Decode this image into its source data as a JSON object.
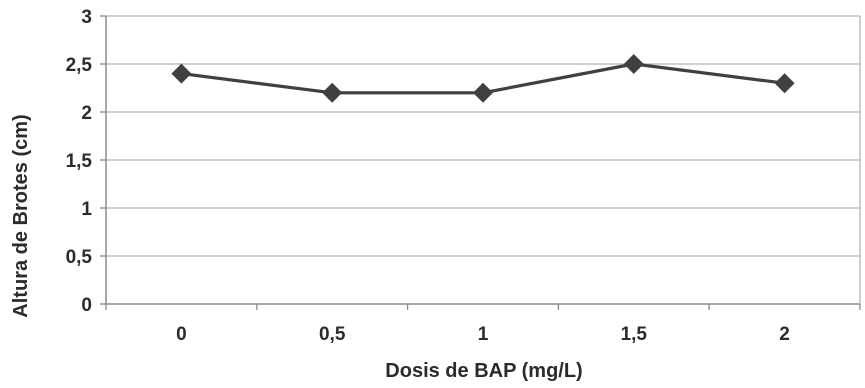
{
  "chart_data": {
    "type": "line",
    "title": "",
    "xlabel": "Dosis de BAP (mg/L)",
    "ylabel": "Altura de Brotes (cm)",
    "categories": [
      "0",
      "0,5",
      "1",
      "1,5",
      "2"
    ],
    "x": [
      0,
      0.5,
      1,
      1.5,
      2
    ],
    "series": [
      {
        "values": [
          2.4,
          2.2,
          2.2,
          2.5,
          2.3
        ],
        "color": "#404040",
        "marker": "diamond"
      }
    ],
    "ylim": [
      0,
      3
    ],
    "yticks": [
      0,
      0.5,
      1,
      1.5,
      2,
      2.5,
      3
    ],
    "ytick_labels": [
      "0",
      "0,5",
      "1",
      "1,5",
      "2",
      "2,5",
      "3"
    ],
    "grid": true,
    "legend": "none",
    "colors": {
      "grid": "#b5b5b5",
      "axis": "#8a8a8a",
      "text": "#2b2b2b"
    }
  }
}
